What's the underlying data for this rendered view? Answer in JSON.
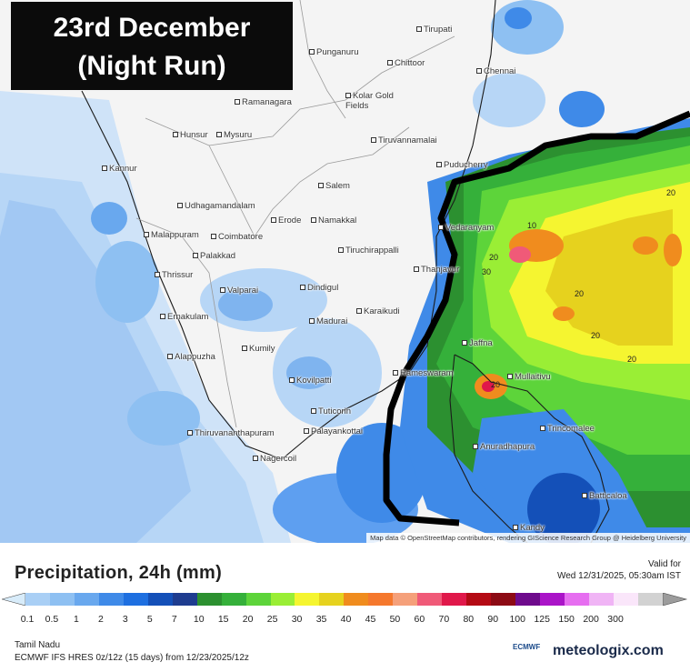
{
  "title": {
    "line1": "23rd December",
    "line2": "(Night Run)"
  },
  "map": {
    "attribution": "Map data © OpenStreetMap contributors, rendering GIScience Research Group @ Heidelberg University",
    "cities": [
      {
        "name": "Tirupati"
      },
      {
        "name": "Punganuru"
      },
      {
        "name": "Chittoor"
      },
      {
        "name": "Chennai"
      },
      {
        "name": "Kolar Gold Fields"
      },
      {
        "name": "Ramanagara"
      },
      {
        "name": "Hunsur"
      },
      {
        "name": "Mysuru"
      },
      {
        "name": "Tiruvannamalai"
      },
      {
        "name": "Kannur"
      },
      {
        "name": "Puducherry"
      },
      {
        "name": "Salem"
      },
      {
        "name": "Udhagamandalam"
      },
      {
        "name": "Erode"
      },
      {
        "name": "Namakkal"
      },
      {
        "name": "Malappuram"
      },
      {
        "name": "Coimbatore"
      },
      {
        "name": "Palakkad"
      },
      {
        "name": "Tiruchirappalli"
      },
      {
        "name": "Vedaranyam"
      },
      {
        "name": "Thrissur"
      },
      {
        "name": "Thanjavur"
      },
      {
        "name": "Dindigul"
      },
      {
        "name": "Valparai"
      },
      {
        "name": "Karaikudi"
      },
      {
        "name": "Ernakulam"
      },
      {
        "name": "Madurai"
      },
      {
        "name": "Kumily"
      },
      {
        "name": "Jaffna"
      },
      {
        "name": "Alappuzha"
      },
      {
        "name": "Rameswaram"
      },
      {
        "name": "Mullaitivu"
      },
      {
        "name": "Kovilpatti"
      },
      {
        "name": "Tuticorin"
      },
      {
        "name": "Thiruvananthapuram"
      },
      {
        "name": "Palayankottai"
      },
      {
        "name": "Trincomalee"
      },
      {
        "name": "Anuradhapura"
      },
      {
        "name": "Nagercoil"
      },
      {
        "name": "Batticaloa"
      },
      {
        "name": "Kandy"
      }
    ],
    "contour_labels": [
      "10",
      "20",
      "30",
      "20",
      "20",
      "20",
      "20",
      "20"
    ]
  },
  "legend": {
    "title": "Precipitation, 24h (mm)",
    "valid_label": "Valid for",
    "valid_value": "Wed 12/31/2025, 05:30am IST",
    "ticks": [
      "0.1",
      "0.5",
      "1",
      "2",
      "3",
      "5",
      "7",
      "10",
      "15",
      "20",
      "25",
      "30",
      "35",
      "40",
      "45",
      "50",
      "60",
      "70",
      "80",
      "90",
      "100",
      "125",
      "150",
      "200",
      "300"
    ],
    "colors": [
      "#a9cff5",
      "#8ec0f2",
      "#69a8ee",
      "#3f8ae8",
      "#1e6fe0",
      "#1450b8",
      "#1e3c8f",
      "#2c9030",
      "#35b03a",
      "#5dd43a",
      "#9aee35",
      "#f5f530",
      "#e6d21e",
      "#f08c1e",
      "#f5782d",
      "#f5a07a",
      "#f05a78",
      "#e0184a",
      "#b40a14",
      "#8c0a14",
      "#6e0a8c",
      "#aa14c8",
      "#e66ef0",
      "#f0b4f5",
      "#fae6fa",
      "#d2d2d2"
    ],
    "region": "Tamil Nadu",
    "model": "ECMWF IFS HRES 0z/12z (15 days) from 12/23/2025/12z",
    "ecmwf": "ECMWF",
    "brand": "meteologix.com"
  }
}
